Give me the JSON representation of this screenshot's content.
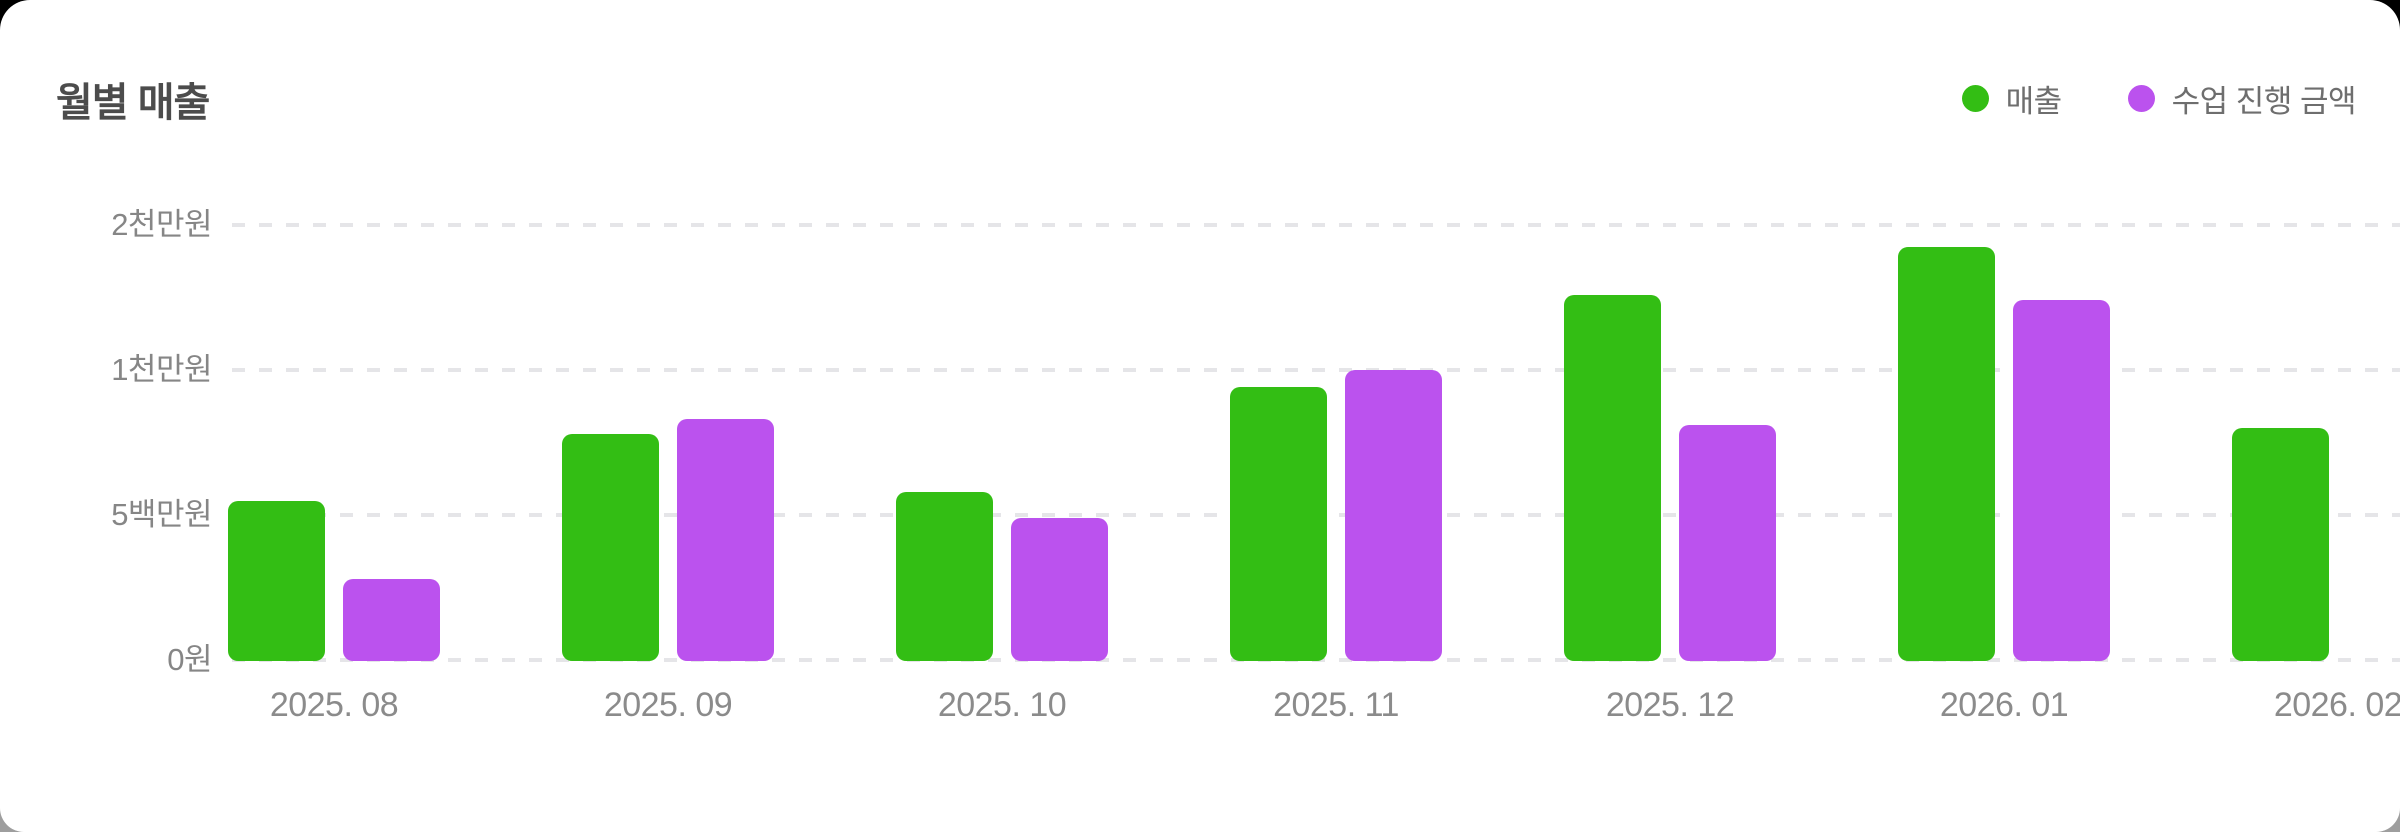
{
  "page": {
    "card_color": "#ffffff",
    "background_top": "#000000",
    "background_bottom": "#9e9e9e"
  },
  "header": {
    "title": "월별 매출"
  },
  "legend": {
    "position": "top-right",
    "items": [
      {
        "label": "매출",
        "color": "#33BE14"
      },
      {
        "label": "수업 진행 금액",
        "color": "#BB52EE"
      }
    ]
  },
  "chart_data": {
    "type": "bar",
    "title": "월별 매출",
    "categories": [
      "2025. 08",
      "2025. 09",
      "2025. 10",
      "2025. 11",
      "2025. 12",
      "2026. 01",
      "2026. 02"
    ],
    "series": [
      {
        "name": "매출",
        "color": "#33BE14",
        "values": [
          5500000,
          7800000,
          5800000,
          9400000,
          15200000,
          18500000,
          8000000
        ]
      },
      {
        "name": "수업 진행 금액",
        "color": "#BB52EE",
        "values": [
          2800000,
          8300000,
          4900000,
          10000000,
          8100000,
          14800000,
          0
        ]
      }
    ],
    "y_axis": {
      "unit": "원",
      "ticks": [
        {
          "value": 0,
          "label": "0원"
        },
        {
          "value": 5000000,
          "label": "5백만원"
        },
        {
          "value": 10000000,
          "label": "1천만원"
        },
        {
          "value": 20000000,
          "label": "2천만원"
        }
      ],
      "scale": "ticks equally spaced (non-linear value axis)"
    },
    "grid": {
      "horizontal_dashed": true
    },
    "legend_position": "top-right",
    "notes": "Last category label is clipped at the right edge; the 수업 진행 금액 bar for 2026. 02 is not visible (zero)."
  }
}
